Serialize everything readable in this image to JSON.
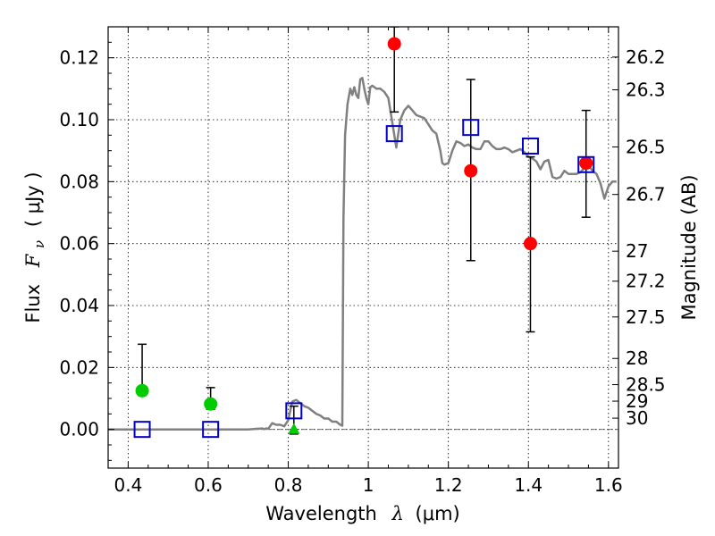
{
  "chart_data": {
    "type": "scatter",
    "xlabel": {
      "text": "Wavelength",
      "symbol": "λ",
      "unit": "(μm)"
    },
    "ylabel": {
      "text": "Flux",
      "symbol": "F",
      "subscript": "ν",
      "unit": "( μJy )"
    },
    "y2label": "Magnitude (AB)",
    "xlim": [
      0.35,
      1.625
    ],
    "ylim": [
      -0.0125,
      0.13
    ],
    "grid": true,
    "x_ticks": [
      {
        "value": 0.4,
        "label": "0.4"
      },
      {
        "value": 0.6,
        "label": "0.6"
      },
      {
        "value": 0.8,
        "label": "0.8"
      },
      {
        "value": 1.0,
        "label": "1"
      },
      {
        "value": 1.2,
        "label": "1.2"
      },
      {
        "value": 1.4,
        "label": "1.4"
      },
      {
        "value": 1.6,
        "label": "1.6"
      }
    ],
    "y_ticks": [
      {
        "value": 0.0,
        "label": "0.00"
      },
      {
        "value": 0.02,
        "label": "0.02"
      },
      {
        "value": 0.04,
        "label": "0.04"
      },
      {
        "value": 0.06,
        "label": "0.06"
      },
      {
        "value": 0.08,
        "label": "0.08"
      },
      {
        "value": 0.1,
        "label": "0.10"
      },
      {
        "value": 0.12,
        "label": "0.12"
      }
    ],
    "y2_ticks": [
      {
        "value": 26.2,
        "label": "26.2"
      },
      {
        "value": 26.3,
        "label": "26.3"
      },
      {
        "value": 26.5,
        "label": "26.5"
      },
      {
        "value": 26.7,
        "label": "26.7"
      },
      {
        "value": 27,
        "label": "27"
      },
      {
        "value": 27.2,
        "label": "27.2"
      },
      {
        "value": 27.5,
        "label": "27.5"
      },
      {
        "value": 28,
        "label": "28"
      },
      {
        "value": 28.5,
        "label": "28.5"
      },
      {
        "value": 29,
        "label": "29"
      },
      {
        "value": 30,
        "label": "30"
      }
    ],
    "model_spectrum": {
      "color": "#808080",
      "x": [
        0.35,
        0.7,
        0.72,
        0.735,
        0.74,
        0.745,
        0.75,
        0.76,
        0.77,
        0.78,
        0.79,
        0.8,
        0.805,
        0.81,
        0.82,
        0.83,
        0.84,
        0.85,
        0.86,
        0.87,
        0.88,
        0.89,
        0.9,
        0.91,
        0.92,
        0.93,
        0.935,
        0.938,
        0.942,
        0.948,
        0.955,
        0.96,
        0.965,
        0.97,
        0.975,
        0.98,
        0.985,
        0.99,
        0.995,
        1.0,
        1.005,
        1.01,
        1.02,
        1.03,
        1.04,
        1.05,
        1.06,
        1.07,
        1.08,
        1.09,
        1.1,
        1.11,
        1.12,
        1.13,
        1.14,
        1.15,
        1.16,
        1.17,
        1.18,
        1.185,
        1.19,
        1.2,
        1.21,
        1.22,
        1.23,
        1.24,
        1.25,
        1.26,
        1.27,
        1.28,
        1.29,
        1.3,
        1.31,
        1.32,
        1.33,
        1.34,
        1.35,
        1.36,
        1.37,
        1.38,
        1.39,
        1.4,
        1.41,
        1.42,
        1.43,
        1.44,
        1.45,
        1.46,
        1.47,
        1.48,
        1.49,
        1.5,
        1.51,
        1.52,
        1.53,
        1.54,
        1.55,
        1.56,
        1.57,
        1.58,
        1.59,
        1.6,
        1.61,
        1.62
      ],
      "y": [
        0.0,
        0.0,
        0.0002,
        0.0003,
        0.0001,
        0.0003,
        0.0002,
        0.002,
        0.0015,
        0.0015,
        0.001,
        0.003,
        0.006,
        0.009,
        0.0095,
        0.0085,
        0.0075,
        0.007,
        0.006,
        0.005,
        0.0045,
        0.0035,
        0.0035,
        0.0025,
        0.0025,
        0.0015,
        0.0012,
        0.068,
        0.095,
        0.105,
        0.11,
        0.108,
        0.1105,
        0.108,
        0.107,
        0.113,
        0.1135,
        0.11,
        0.107,
        0.105,
        0.1105,
        0.111,
        0.11,
        0.11,
        0.109,
        0.107,
        0.099,
        0.091,
        0.1,
        0.103,
        0.1045,
        0.103,
        0.1015,
        0.101,
        0.1005,
        0.0985,
        0.0965,
        0.0955,
        0.09,
        0.086,
        0.0855,
        0.086,
        0.09,
        0.093,
        0.0925,
        0.0915,
        0.092,
        0.091,
        0.0905,
        0.0905,
        0.093,
        0.093,
        0.0915,
        0.0905,
        0.0905,
        0.091,
        0.0905,
        0.0895,
        0.09,
        0.0905,
        0.0895,
        0.088,
        0.0875,
        0.0865,
        0.084,
        0.0865,
        0.087,
        0.0815,
        0.081,
        0.0815,
        0.0835,
        0.0825,
        0.0825,
        0.0825,
        0.083,
        0.0845,
        0.0855,
        0.0835,
        0.0825,
        0.0795,
        0.0745,
        0.0785,
        0.08,
        0.08
      ]
    },
    "model_photometry": {
      "marker": "open-square",
      "color": "#0000cc",
      "x": [
        0.435,
        0.606,
        0.814,
        1.065,
        1.256,
        1.405,
        1.544
      ],
      "y": [
        0.0,
        0.0,
        0.006,
        0.0955,
        0.0975,
        0.0915,
        0.0855
      ]
    },
    "observed_optical": {
      "marker": "circle",
      "color": "#00cc00",
      "x": [
        0.435,
        0.606
      ],
      "y": [
        0.0125,
        0.0082
      ],
      "yerr_low": [
        0.011,
        0.0065
      ],
      "yerr_high": [
        0.0275,
        0.0135
      ]
    },
    "observed_upper_limit": {
      "marker": "triangle-up",
      "color": "#00cc00",
      "x": [
        0.814
      ],
      "y": [
        0.0
      ],
      "yerr_low": [
        -0.0015
      ],
      "yerr_high": [
        0.0075
      ]
    },
    "observed_nir": {
      "marker": "circle",
      "color": "#ff0000",
      "x": [
        1.065,
        1.256,
        1.405,
        1.544
      ],
      "y": [
        0.1245,
        0.0835,
        0.06,
        0.086
      ],
      "yerr_low": [
        0.1025,
        0.0545,
        0.0315,
        0.0685
      ],
      "yerr_high": [
        0.13,
        0.113,
        0.088,
        0.103
      ]
    }
  }
}
